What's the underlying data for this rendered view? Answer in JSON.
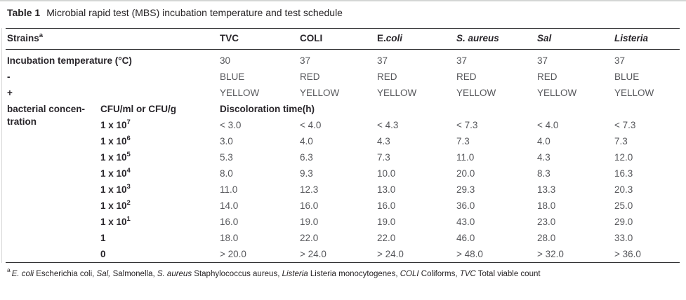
{
  "caption": {
    "label": "Table 1",
    "text": "Microbial rapid test (MBS) incubation temperature and test schedule"
  },
  "colors": {
    "text_dark": "#28252a",
    "text_gray": "#56575b",
    "rule": "#333335",
    "background": "#ffffff"
  },
  "table": {
    "strains_header": {
      "text": "Strains",
      "sup": "a"
    },
    "col_headers": [
      {
        "roman": "TVC",
        "italic": ""
      },
      {
        "roman": "COLI",
        "italic": ""
      },
      {
        "roman": "E.",
        "italic": "coli"
      },
      {
        "roman": "",
        "italic": "S. aureus"
      },
      {
        "roman": "",
        "italic": "Sal"
      },
      {
        "roman": "",
        "italic": "Listeria"
      }
    ],
    "temperature_row": {
      "label": "Incubation temperature (°C)",
      "values": [
        "30",
        "37",
        "37",
        "37",
        "37",
        "37"
      ]
    },
    "negative_row": {
      "label": "-",
      "values": [
        "BLUE",
        "RED",
        "RED",
        "RED",
        "RED",
        "BLUE"
      ]
    },
    "positive_row": {
      "label": "+",
      "values": [
        "YELLOW",
        "YELLOW",
        "YELLOW",
        "YELLOW",
        "YELLOW",
        "YELLOW"
      ]
    },
    "concentration_section": {
      "row_label": "bacterial concen-\ntration",
      "unit_header": "CFU/ml or CFU/g",
      "time_header": "Discoloration time(h)"
    },
    "conc_rows": [
      {
        "label_base": "1 x 10",
        "label_exp": "7",
        "values": [
          "< 3.0",
          "< 4.0",
          "< 4.3",
          "< 7.3",
          "< 4.0",
          "< 7.3"
        ]
      },
      {
        "label_base": "1 x 10",
        "label_exp": "6",
        "values": [
          "3.0",
          "4.0",
          "4.3",
          "7.3",
          "4.0",
          "7.3"
        ]
      },
      {
        "label_base": "1 x 10",
        "label_exp": "5",
        "values": [
          "5.3",
          "6.3",
          "7.3",
          "11.0",
          "4.3",
          "12.0"
        ]
      },
      {
        "label_base": "1 x 10",
        "label_exp": "4",
        "values": [
          "8.0",
          "9.3",
          "10.0",
          "20.0",
          "8.3",
          "16.3"
        ]
      },
      {
        "label_base": "1 x 10",
        "label_exp": "3",
        "values": [
          "11.0",
          "12.3",
          "13.0",
          "29.3",
          "13.3",
          "20.3"
        ]
      },
      {
        "label_base": "1 x 10",
        "label_exp": "2",
        "values": [
          "14.0",
          "16.0",
          "16.0",
          "36.0",
          "18.0",
          "25.0"
        ]
      },
      {
        "label_base": "1 x 10",
        "label_exp": "1",
        "values": [
          "16.0",
          "19.0",
          "19.0",
          "43.0",
          "23.0",
          "29.0"
        ]
      },
      {
        "label_base": "1",
        "label_exp": "",
        "values": [
          "18.0",
          "22.0",
          "22.0",
          "46.0",
          "28.0",
          "33.0"
        ]
      },
      {
        "label_base": "0",
        "label_exp": "",
        "values": [
          "> 20.0",
          "> 24.0",
          "> 24.0",
          "> 48.0",
          "> 32.0",
          "> 36.0"
        ]
      }
    ]
  },
  "footnote": {
    "sup": "a",
    "segments": [
      {
        "text": "E. coli",
        "italic": true
      },
      {
        "text": " Escherichia coli, ",
        "italic": false
      },
      {
        "text": "Sal,",
        "italic": true
      },
      {
        "text": " Salmonella, ",
        "italic": false
      },
      {
        "text": "S. aureus",
        "italic": true
      },
      {
        "text": " Staphylococcus aureus, ",
        "italic": false
      },
      {
        "text": "Listeria",
        "italic": true
      },
      {
        "text": " Listeria monocytogenes, ",
        "italic": false
      },
      {
        "text": "COLI",
        "italic": true
      },
      {
        "text": " Coliforms, ",
        "italic": false
      },
      {
        "text": "TVC",
        "italic": true
      },
      {
        "text": " Total viable count",
        "italic": false
      }
    ]
  }
}
